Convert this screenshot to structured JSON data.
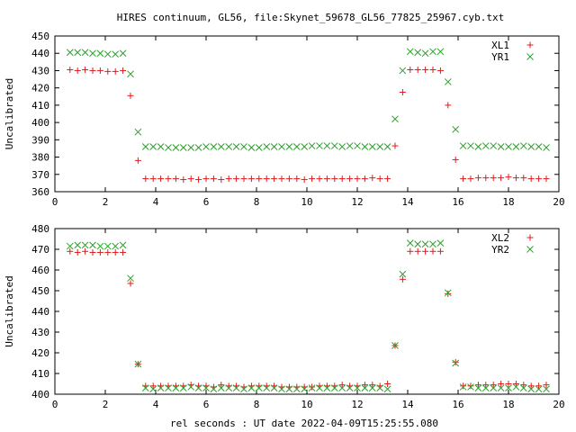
{
  "figure": {
    "title": "HIRES continuum, GL56, file:Skynet_59678_GL56_77825_25967.cyb.txt",
    "xlabel": "rel seconds : UT date 2022-04-09T15:25:55.080"
  },
  "colors": {
    "red_marker": "#e31a1c",
    "green_marker": "#2ca02c",
    "frame": "#000000"
  },
  "chart_data": [
    {
      "type": "scatter",
      "ylabel": "Uncalibrated",
      "xlim": [
        0,
        20
      ],
      "ylim": [
        360,
        450
      ],
      "xticks": [
        0,
        2,
        4,
        6,
        8,
        10,
        12,
        14,
        16,
        18,
        20
      ],
      "yticks": [
        360,
        370,
        380,
        390,
        400,
        410,
        420,
        430,
        440,
        450
      ],
      "legend_position": "top-right",
      "series": [
        {
          "name": "XL1",
          "marker": "plus",
          "color": "#e31a1c",
          "x": [
            0.6,
            0.9,
            1.2,
            1.5,
            1.8,
            2.1,
            2.4,
            2.7,
            3.0,
            3.3,
            3.6,
            3.9,
            4.2,
            4.5,
            4.8,
            5.1,
            5.4,
            5.7,
            6.0,
            6.3,
            6.6,
            6.9,
            7.2,
            7.5,
            7.8,
            8.1,
            8.4,
            8.7,
            9.0,
            9.3,
            9.6,
            9.9,
            10.2,
            10.5,
            10.8,
            11.1,
            11.4,
            11.7,
            12.0,
            12.3,
            12.6,
            12.9,
            13.2,
            13.5,
            13.8,
            14.1,
            14.4,
            14.7,
            15.0,
            15.3,
            15.6,
            15.9,
            16.2,
            16.5,
            16.8,
            17.1,
            17.4,
            17.7,
            18.0,
            18.3,
            18.6,
            18.9,
            19.2,
            19.5
          ],
          "y": [
            430.5,
            430,
            430.5,
            430,
            430,
            429.5,
            429.5,
            430,
            415.5,
            378,
            367.5,
            367.5,
            367.5,
            367.5,
            367.5,
            367,
            367.5,
            367,
            367.5,
            367.5,
            367,
            367.5,
            367.5,
            367.5,
            367.5,
            367.5,
            367.5,
            367.5,
            367.5,
            367.5,
            367.5,
            367,
            367.5,
            367.5,
            367.5,
            367.5,
            367.5,
            367.5,
            367.5,
            367.5,
            368,
            367.5,
            367.5,
            386.5,
            417.5,
            430.5,
            430.5,
            430.5,
            430.5,
            430,
            410,
            378.5,
            367.5,
            367.5,
            368,
            368,
            368,
            368,
            368.5,
            368,
            368,
            367.5,
            367.5,
            367.5
          ]
        },
        {
          "name": "YR1",
          "marker": "cross",
          "color": "#2ca02c",
          "x": [
            0.6,
            0.9,
            1.2,
            1.5,
            1.8,
            2.1,
            2.4,
            2.7,
            3.0,
            3.3,
            3.6,
            3.9,
            4.2,
            4.5,
            4.8,
            5.1,
            5.4,
            5.7,
            6.0,
            6.3,
            6.6,
            6.9,
            7.2,
            7.5,
            7.8,
            8.1,
            8.4,
            8.7,
            9.0,
            9.3,
            9.6,
            9.9,
            10.2,
            10.5,
            10.8,
            11.1,
            11.4,
            11.7,
            12.0,
            12.3,
            12.6,
            12.9,
            13.2,
            13.5,
            13.8,
            14.1,
            14.4,
            14.7,
            15.0,
            15.3,
            15.6,
            15.9,
            16.2,
            16.5,
            16.8,
            17.1,
            17.4,
            17.7,
            18.0,
            18.3,
            18.6,
            18.9,
            19.2,
            19.5
          ],
          "y": [
            440.5,
            440.5,
            440.5,
            440,
            440,
            439.5,
            439.5,
            440,
            428,
            394.5,
            386,
            386,
            386,
            385.5,
            385.5,
            385.5,
            385.5,
            385.5,
            386,
            386,
            386,
            386,
            386,
            386,
            385.5,
            385.5,
            386,
            386,
            386,
            386,
            386,
            386,
            386.5,
            386.5,
            386.5,
            386.5,
            386,
            386.5,
            386.5,
            386,
            386,
            386,
            386,
            402,
            430,
            441,
            440.5,
            440,
            441,
            441,
            423.5,
            396,
            386.5,
            386.5,
            386,
            386.5,
            386.5,
            386,
            386,
            386,
            386.5,
            386,
            386,
            385.5
          ]
        }
      ]
    },
    {
      "type": "scatter",
      "ylabel": "Uncalibrated",
      "xlim": [
        0,
        20
      ],
      "ylim": [
        400,
        480
      ],
      "xticks": [
        0,
        2,
        4,
        6,
        8,
        10,
        12,
        14,
        16,
        18,
        20
      ],
      "yticks": [
        400,
        410,
        420,
        430,
        440,
        450,
        460,
        470,
        480
      ],
      "legend_position": "top-right",
      "series": [
        {
          "name": "XL2",
          "marker": "plus",
          "color": "#e31a1c",
          "x": [
            0.6,
            0.9,
            1.2,
            1.5,
            1.8,
            2.1,
            2.4,
            2.7,
            3.0,
            3.3,
            3.6,
            3.9,
            4.2,
            4.5,
            4.8,
            5.1,
            5.4,
            5.7,
            6.0,
            6.3,
            6.6,
            6.9,
            7.2,
            7.5,
            7.8,
            8.1,
            8.4,
            8.7,
            9.0,
            9.3,
            9.6,
            9.9,
            10.2,
            10.5,
            10.8,
            11.1,
            11.4,
            11.7,
            12.0,
            12.3,
            12.6,
            12.9,
            13.2,
            13.5,
            13.8,
            14.1,
            14.4,
            14.7,
            15.0,
            15.3,
            15.6,
            15.9,
            16.2,
            16.5,
            16.8,
            17.1,
            17.4,
            17.7,
            18.0,
            18.3,
            18.6,
            18.9,
            19.2,
            19.5
          ],
          "y": [
            469,
            468.5,
            469,
            468.5,
            468.5,
            468.5,
            468.5,
            468.5,
            453.5,
            414.5,
            404,
            404,
            404,
            404,
            404,
            404,
            404.5,
            404,
            404,
            403.5,
            404.5,
            404,
            404,
            403.5,
            404,
            404,
            404,
            404,
            403.5,
            403.5,
            403.5,
            403.5,
            403.5,
            404,
            404,
            404,
            404.5,
            404,
            404,
            404.5,
            404.5,
            404,
            405,
            423.5,
            455.5,
            469,
            469,
            469,
            469,
            469,
            448.5,
            415.5,
            404,
            404,
            404.5,
            404.5,
            404.5,
            405,
            405,
            405,
            404.5,
            404,
            404,
            404.5
          ]
        },
        {
          "name": "YR2",
          "marker": "cross",
          "color": "#2ca02c",
          "x": [
            0.6,
            0.9,
            1.2,
            1.5,
            1.8,
            2.1,
            2.4,
            2.7,
            3.0,
            3.3,
            3.6,
            3.9,
            4.2,
            4.5,
            4.8,
            5.1,
            5.4,
            5.7,
            6.0,
            6.3,
            6.6,
            6.9,
            7.2,
            7.5,
            7.8,
            8.1,
            8.4,
            8.7,
            9.0,
            9.3,
            9.6,
            9.9,
            10.2,
            10.5,
            10.8,
            11.1,
            11.4,
            11.7,
            12.0,
            12.3,
            12.6,
            12.9,
            13.2,
            13.5,
            13.8,
            14.1,
            14.4,
            14.7,
            15.0,
            15.3,
            15.6,
            15.9,
            16.2,
            16.5,
            16.8,
            17.1,
            17.4,
            17.7,
            18.0,
            18.3,
            18.6,
            18.9,
            19.2,
            19.5
          ],
          "y": [
            471.5,
            472,
            472,
            472,
            471.5,
            471.5,
            471.5,
            472,
            456,
            414.5,
            403,
            402.5,
            403,
            403,
            403,
            403,
            403.5,
            403,
            403,
            402.5,
            403,
            403,
            403,
            402.5,
            403,
            403,
            403,
            403,
            402.5,
            402.5,
            402.5,
            402.5,
            403,
            403,
            403,
            403,
            403,
            403,
            403,
            403,
            403,
            403,
            402.5,
            423.5,
            458,
            473,
            472.5,
            472.5,
            472.5,
            473,
            449,
            415,
            403.5,
            403.5,
            403,
            403,
            403,
            403,
            403,
            403.5,
            403,
            402.5,
            402.5,
            402.5
          ]
        }
      ]
    }
  ]
}
